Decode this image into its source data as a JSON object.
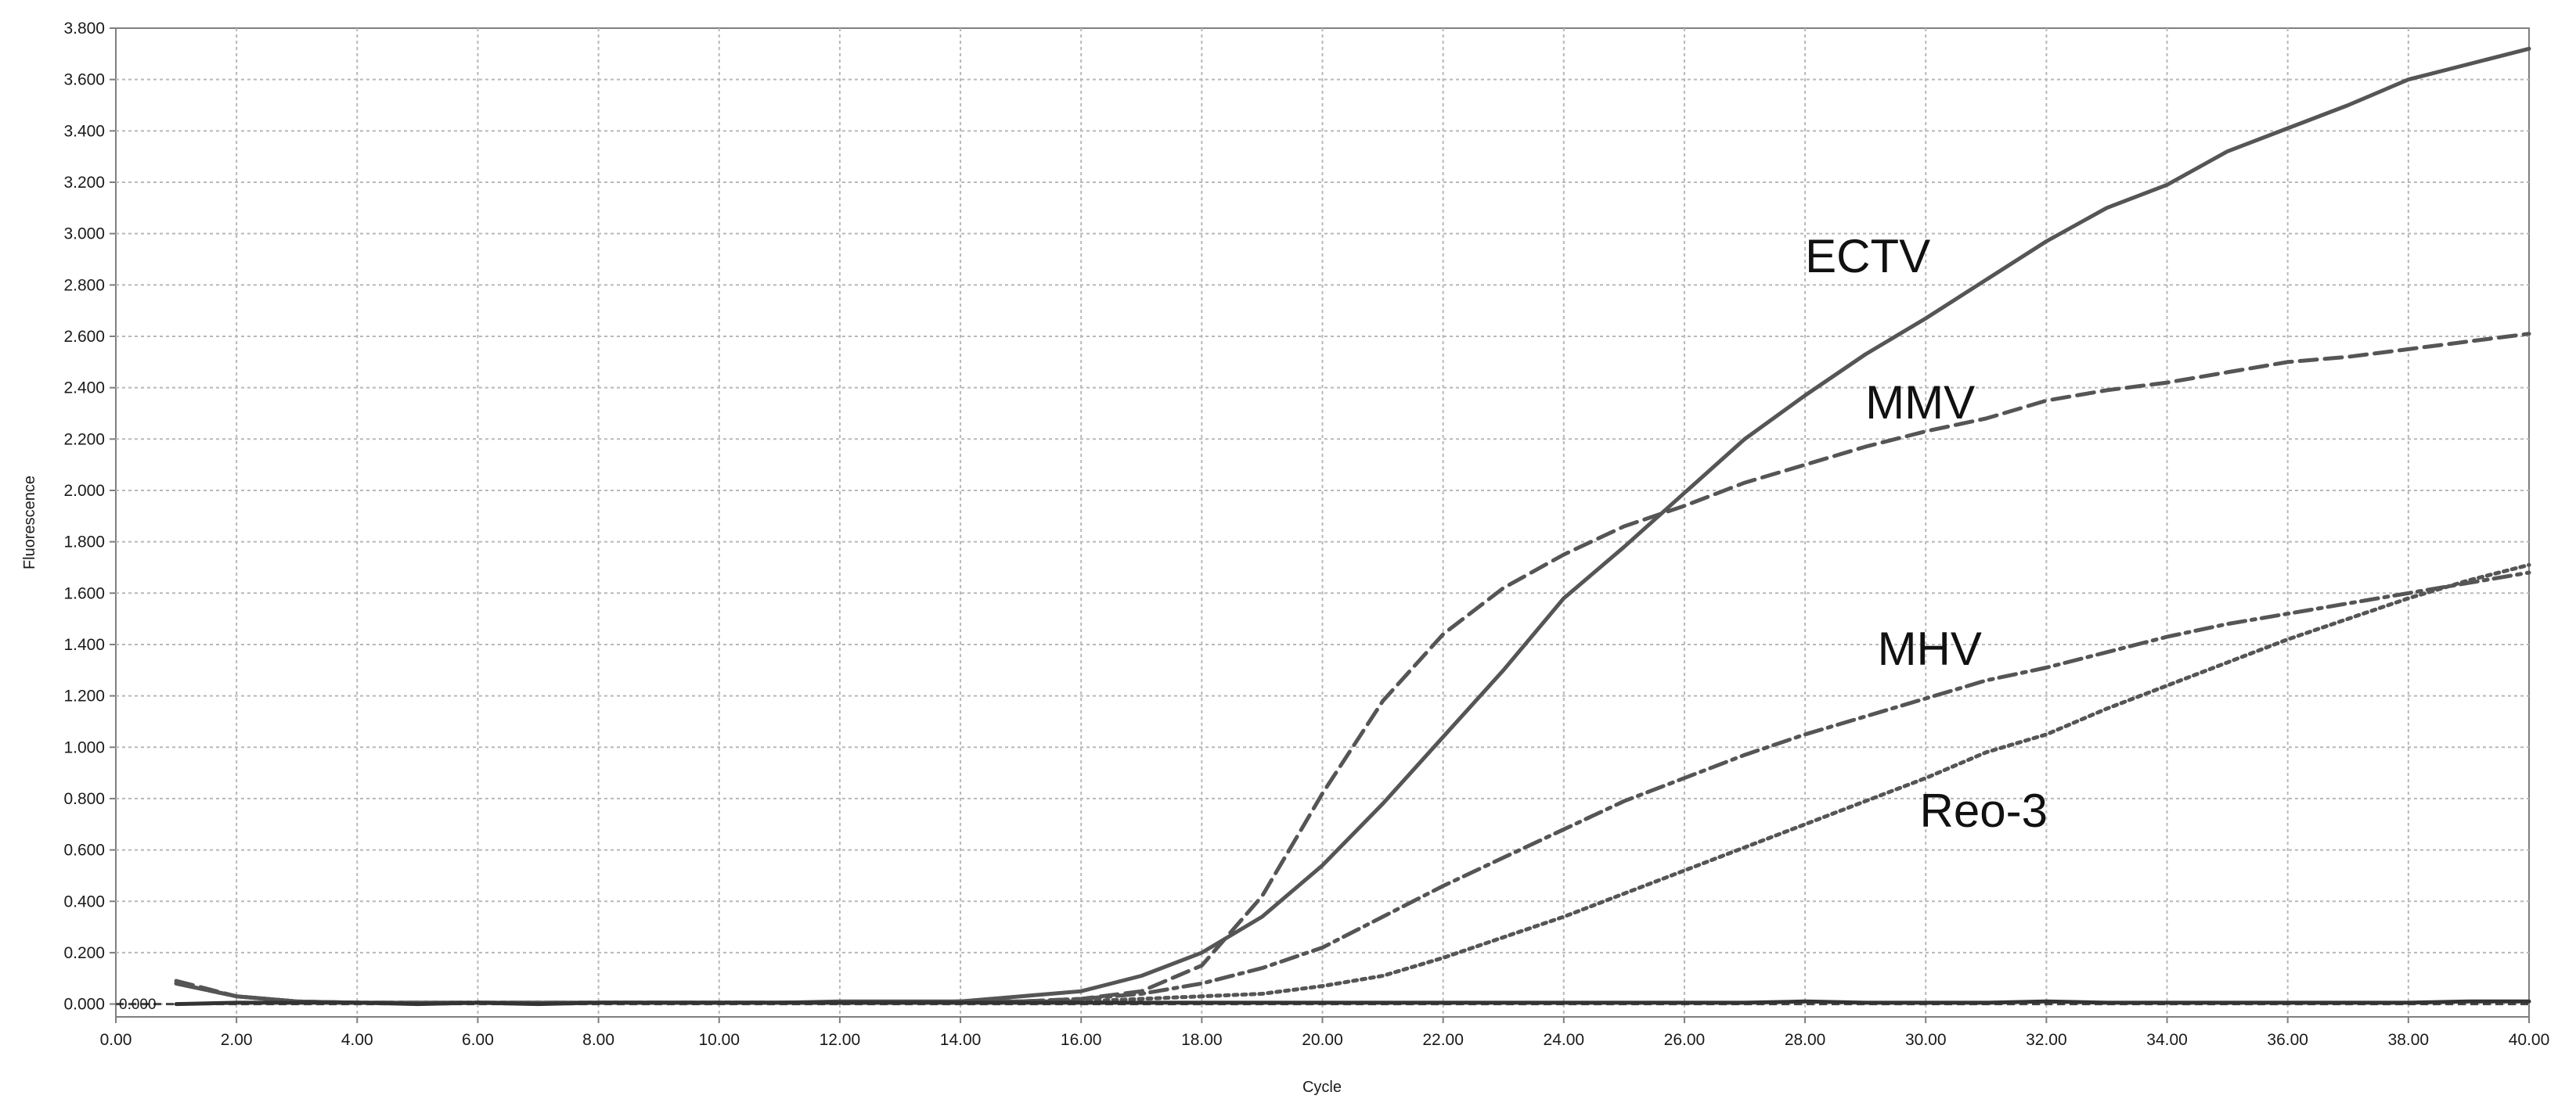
{
  "chart_data": {
    "type": "line",
    "xlabel": "Cycle",
    "ylabel": "Fluorescence",
    "xlim": [
      0,
      40
    ],
    "ylim": [
      -0.05,
      3.8
    ],
    "x_ticks": [
      "0.00",
      "2.00",
      "4.00",
      "6.00",
      "8.00",
      "10.00",
      "12.00",
      "14.00",
      "16.00",
      "18.00",
      "20.00",
      "22.00",
      "24.00",
      "26.00",
      "28.00",
      "30.00",
      "32.00",
      "34.00",
      "36.00",
      "38.00",
      "40.00"
    ],
    "y_ticks": [
      "0.000",
      "0.200",
      "0.400",
      "0.600",
      "0.800",
      "1.000",
      "1.200",
      "1.400",
      "1.600",
      "1.800",
      "2.000",
      "2.200",
      "2.400",
      "2.600",
      "2.800",
      "3.000",
      "3.200",
      "3.400",
      "3.600",
      "3.800"
    ],
    "grid": true,
    "threshold": {
      "label": "0.000",
      "value": 0.0
    },
    "series": [
      {
        "name": "ECTV",
        "line_style": "solid",
        "color": "#555555",
        "x": [
          1,
          2,
          3,
          4,
          5,
          6,
          7,
          8,
          9,
          10,
          11,
          12,
          13,
          14,
          15,
          16,
          17,
          18,
          19,
          20,
          21,
          22,
          23,
          24,
          25,
          26,
          27,
          28,
          29,
          30,
          31,
          32,
          33,
          34,
          35,
          36,
          37,
          38,
          39,
          40
        ],
        "values": [
          0.08,
          0.03,
          0.01,
          0.005,
          0.005,
          0.005,
          0.005,
          0.005,
          0.005,
          0.005,
          0.005,
          0.01,
          0.01,
          0.01,
          0.03,
          0.05,
          0.11,
          0.2,
          0.34,
          0.54,
          0.78,
          1.04,
          1.3,
          1.58,
          1.78,
          1.99,
          2.2,
          2.37,
          2.53,
          2.67,
          2.82,
          2.97,
          3.1,
          3.19,
          3.32,
          3.41,
          3.5,
          3.6,
          3.66,
          3.72
        ]
      },
      {
        "name": "MMV",
        "line_style": "dashed",
        "color": "#555555",
        "x": [
          1,
          2,
          3,
          4,
          5,
          6,
          7,
          8,
          9,
          10,
          11,
          12,
          13,
          14,
          15,
          16,
          17,
          18,
          19,
          20,
          21,
          22,
          23,
          24,
          25,
          26,
          27,
          28,
          29,
          30,
          31,
          32,
          33,
          34,
          35,
          36,
          37,
          38,
          39,
          40
        ],
        "values": [
          0.09,
          0.03,
          0.01,
          0.005,
          0.005,
          0.005,
          0.005,
          0.005,
          0.005,
          0.005,
          0.005,
          0.005,
          0.005,
          0.01,
          0.01,
          0.02,
          0.05,
          0.15,
          0.42,
          0.82,
          1.18,
          1.44,
          1.62,
          1.75,
          1.86,
          1.94,
          2.03,
          2.1,
          2.17,
          2.23,
          2.28,
          2.35,
          2.39,
          2.42,
          2.46,
          2.5,
          2.52,
          2.55,
          2.58,
          2.61
        ]
      },
      {
        "name": "MHV",
        "line_style": "dash-dot",
        "color": "#555555",
        "x": [
          1,
          2,
          3,
          4,
          5,
          6,
          7,
          8,
          9,
          10,
          11,
          12,
          13,
          14,
          15,
          16,
          17,
          18,
          19,
          20,
          21,
          22,
          23,
          24,
          25,
          26,
          27,
          28,
          29,
          30,
          31,
          32,
          33,
          34,
          35,
          36,
          37,
          38,
          39,
          40
        ],
        "values": [
          0.08,
          0.03,
          0.01,
          0.005,
          0.005,
          0.005,
          0.005,
          0.005,
          0.005,
          0.005,
          0.005,
          0.005,
          0.005,
          0.01,
          0.01,
          0.02,
          0.04,
          0.08,
          0.14,
          0.22,
          0.34,
          0.46,
          0.57,
          0.68,
          0.79,
          0.88,
          0.97,
          1.05,
          1.12,
          1.19,
          1.26,
          1.31,
          1.37,
          1.43,
          1.48,
          1.52,
          1.56,
          1.6,
          1.64,
          1.68
        ]
      },
      {
        "name": "Reo-3",
        "line_style": "dotted",
        "color": "#555555",
        "x": [
          1,
          2,
          3,
          4,
          5,
          6,
          7,
          8,
          9,
          10,
          11,
          12,
          13,
          14,
          15,
          16,
          17,
          18,
          19,
          20,
          21,
          22,
          23,
          24,
          25,
          26,
          27,
          28,
          29,
          30,
          31,
          32,
          33,
          34,
          35,
          36,
          37,
          38,
          39,
          40
        ],
        "values": [
          0.08,
          0.03,
          0.01,
          0.005,
          0.005,
          0.005,
          0.005,
          0.005,
          0.005,
          0.005,
          0.005,
          0.005,
          0.005,
          0.005,
          0.01,
          0.01,
          0.02,
          0.03,
          0.04,
          0.07,
          0.11,
          0.18,
          0.26,
          0.34,
          0.43,
          0.52,
          0.61,
          0.7,
          0.79,
          0.88,
          0.98,
          1.05,
          1.15,
          1.24,
          1.33,
          1.42,
          1.5,
          1.58,
          1.65,
          1.71
        ]
      },
      {
        "name": "",
        "line_style": "solid",
        "color": "#333333",
        "x": [
          1,
          2,
          3,
          4,
          5,
          6,
          7,
          8,
          9,
          10,
          11,
          12,
          13,
          14,
          15,
          16,
          17,
          18,
          19,
          20,
          21,
          22,
          23,
          24,
          25,
          26,
          27,
          28,
          29,
          30,
          31,
          32,
          33,
          34,
          35,
          36,
          37,
          38,
          39,
          40
        ],
        "values": [
          0.0,
          0.005,
          0.005,
          0.005,
          0.0,
          0.005,
          0.0,
          0.005,
          0.005,
          0.005,
          0.005,
          0.005,
          0.005,
          0.005,
          0.005,
          0.005,
          0.005,
          0.005,
          0.005,
          0.005,
          0.005,
          0.005,
          0.005,
          0.005,
          0.005,
          0.005,
          0.005,
          0.01,
          0.005,
          0.005,
          0.005,
          0.01,
          0.005,
          0.005,
          0.005,
          0.005,
          0.005,
          0.005,
          0.01,
          0.01
        ]
      }
    ],
    "annotations": [
      {
        "text": "ECTV",
        "x": 28.0,
        "y": 2.85
      },
      {
        "text": "MMV",
        "x": 29.0,
        "y": 2.28
      },
      {
        "text": "MHV",
        "x": 29.2,
        "y": 1.32
      },
      {
        "text": "Reo-3",
        "x": 29.9,
        "y": 0.69
      }
    ]
  }
}
